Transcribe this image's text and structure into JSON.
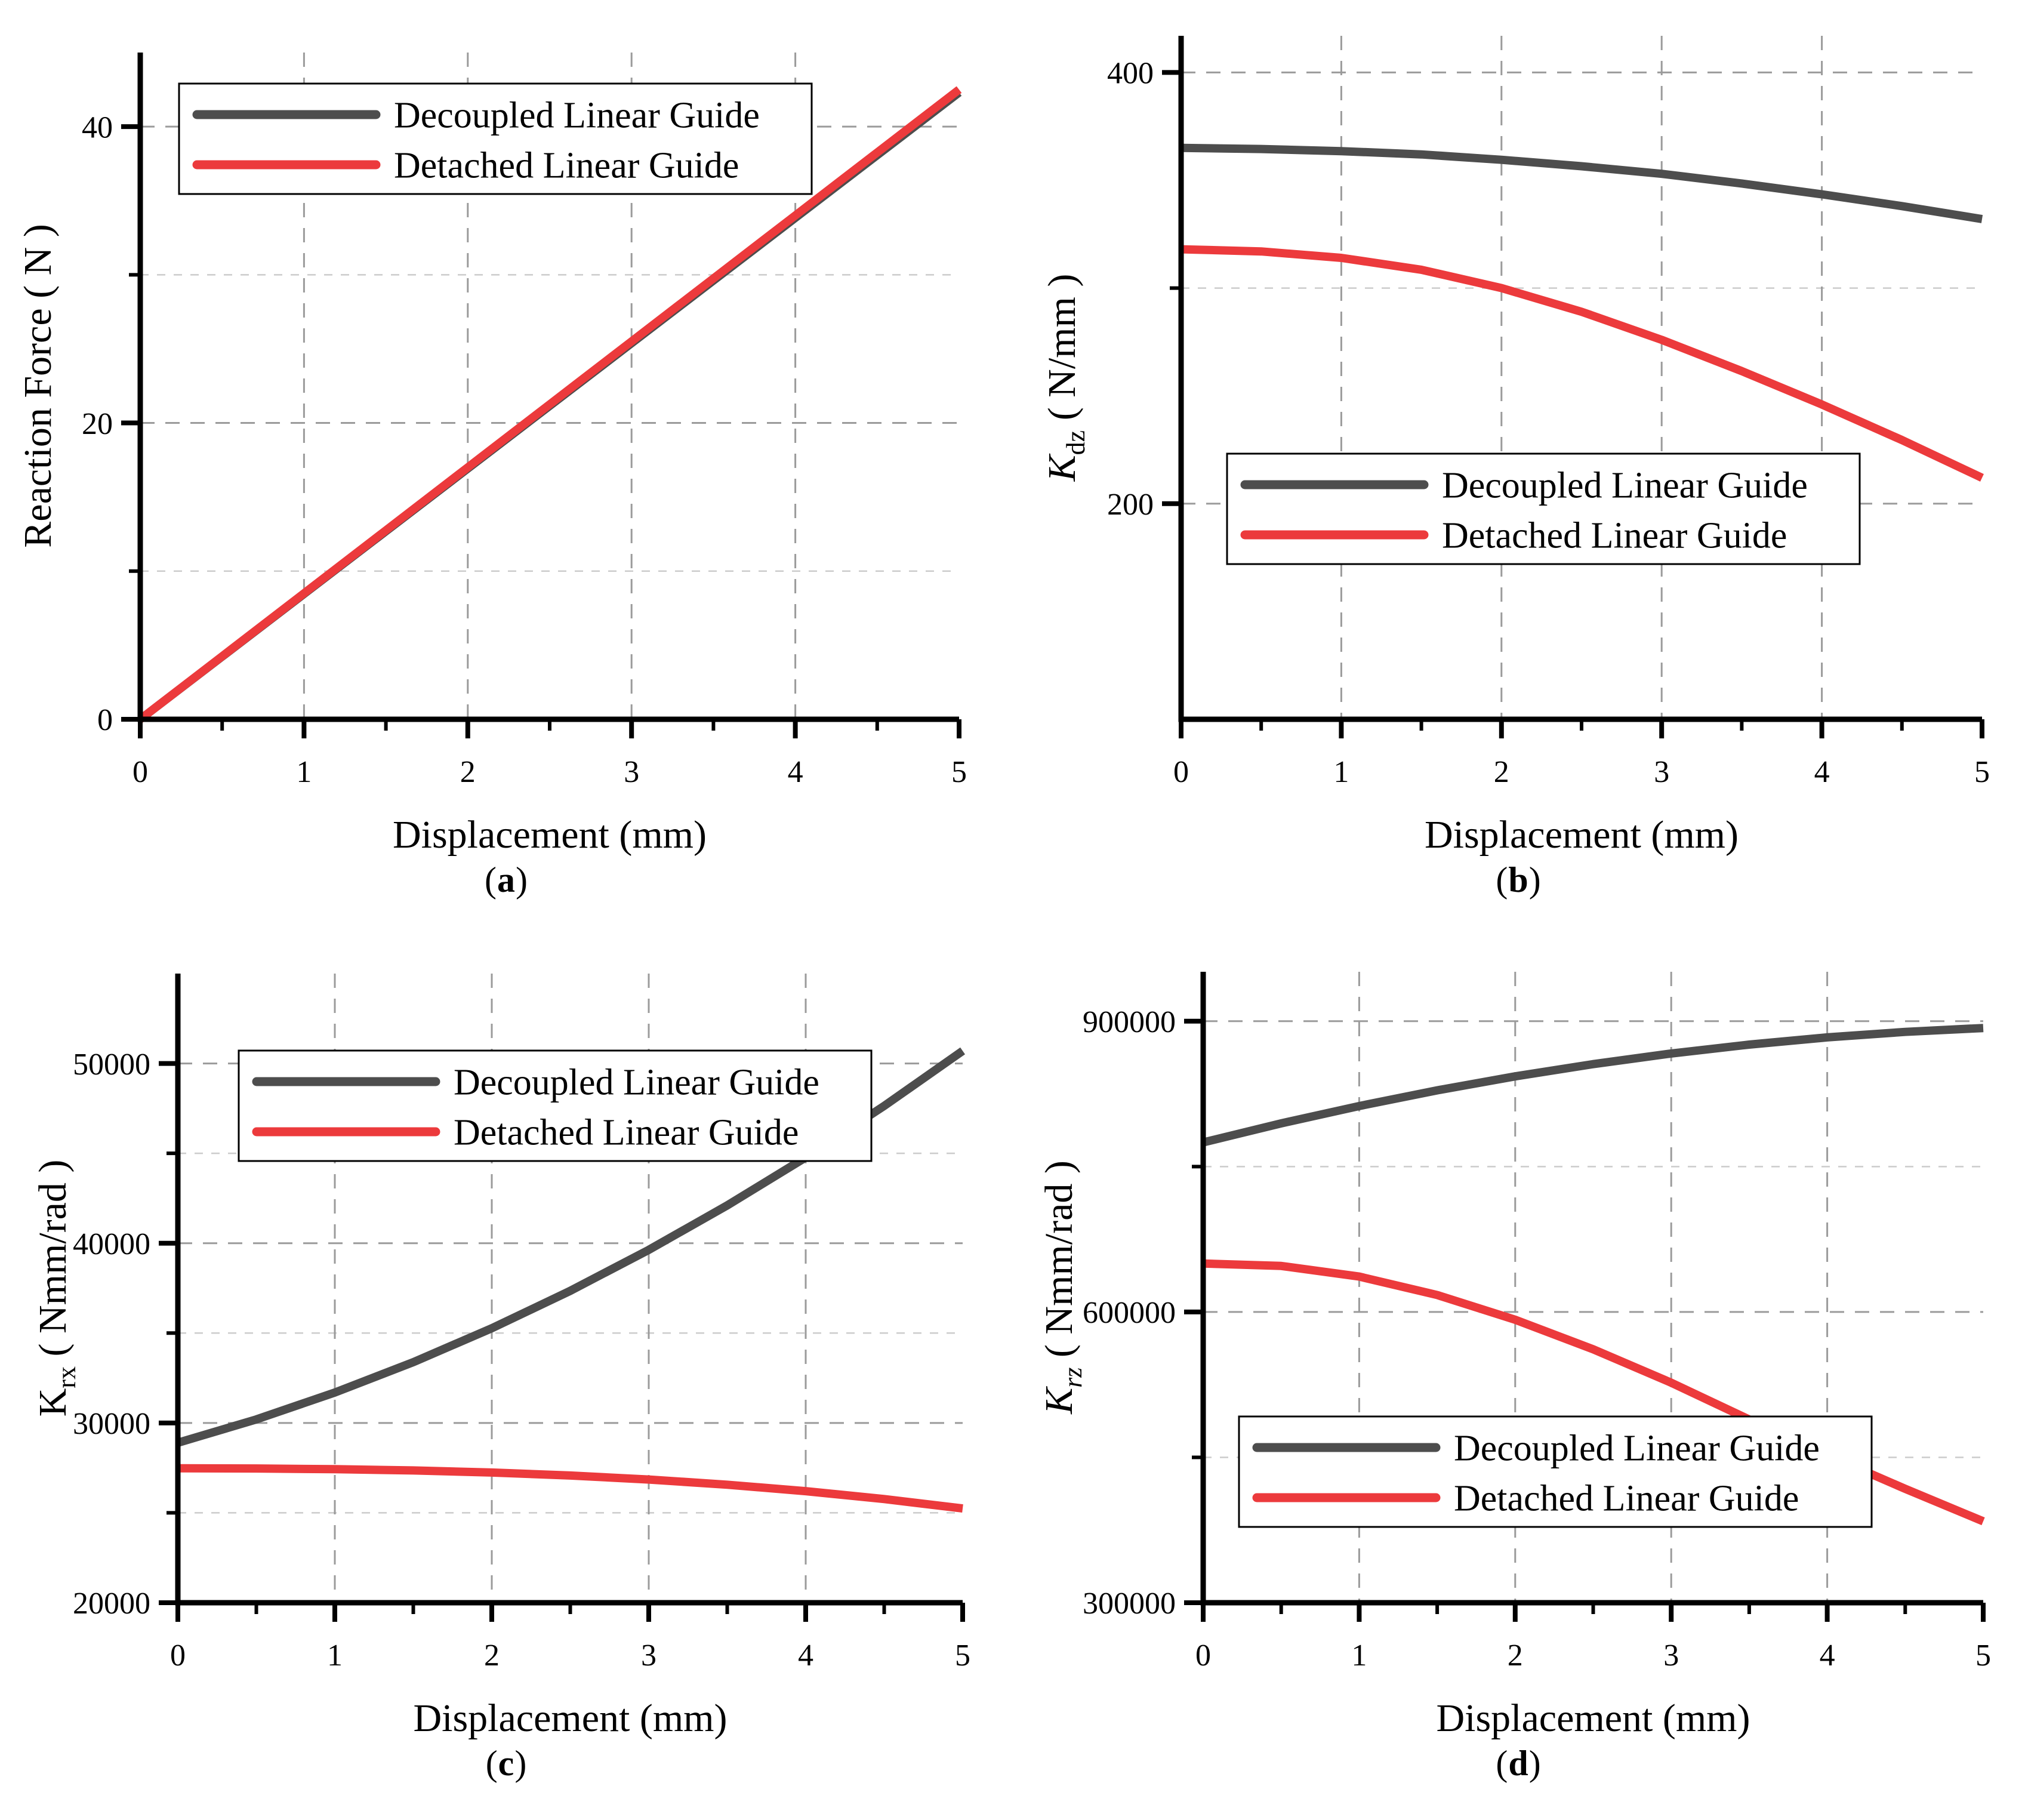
{
  "page": {
    "background": "#ffffff"
  },
  "colors": {
    "decoupled": "#4D4D4D",
    "detached": "#EC3A3C",
    "axis": "#000000",
    "grid_major": "#9B9B9B",
    "grid_minor": "#CCCCCC",
    "legend_bg": "#FFFFFF",
    "legend_border": "#000000",
    "text": "#000000"
  },
  "legend_labels": [
    "Decoupled Linear Guide",
    "Detached Linear Guide"
  ],
  "chart_data": [
    {
      "id": "a",
      "type": "line",
      "caption_open": "(",
      "caption_letter": "a",
      "caption_close": ")",
      "xlabel": "Displacement (mm)",
      "ylabel": {
        "pre": "Reaction Force ( N )",
        "italic_pre": false,
        "sub": "",
        "italic_sub": false,
        "post": ""
      },
      "xlim": [
        0,
        5
      ],
      "ylim": [
        0,
        45
      ],
      "xticks": [
        {
          "v": 0,
          "label": "0"
        },
        {
          "v": 1,
          "label": "1"
        },
        {
          "v": 2,
          "label": "2"
        },
        {
          "v": 3,
          "label": "3"
        },
        {
          "v": 4,
          "label": "4"
        },
        {
          "v": 5,
          "label": "5"
        }
      ],
      "x_minor": [
        0.5,
        1.5,
        2.5,
        3.5,
        4.5
      ],
      "yticks": [
        {
          "v": 0,
          "label": "0"
        },
        {
          "v": 20,
          "label": "20"
        },
        {
          "v": 40,
          "label": "40"
        }
      ],
      "y_minor": [
        10,
        30
      ],
      "grid_x": [
        1,
        2,
        3,
        4
      ],
      "grid_y_major": [
        20,
        40
      ],
      "grid_y_minor": [
        10,
        30
      ],
      "legend_position": "top-left",
      "x": [
        0,
        0.5,
        1,
        1.5,
        2,
        2.5,
        3,
        3.5,
        4,
        4.5,
        5
      ],
      "series": [
        {
          "name": "Decoupled Linear Guide",
          "color_key": "decoupled",
          "values": [
            0,
            4.23,
            8.46,
            12.69,
            16.92,
            21.15,
            25.38,
            29.61,
            33.84,
            38.07,
            42.3
          ]
        },
        {
          "name": "Detached Linear Guide",
          "color_key": "detached",
          "values": [
            0,
            4.25,
            8.5,
            12.75,
            17,
            21.25,
            25.5,
            29.75,
            34,
            38.25,
            42.5
          ]
        }
      ]
    },
    {
      "id": "b",
      "type": "line",
      "caption_open": "(",
      "caption_letter": "b",
      "caption_close": ")",
      "xlabel": "Displacement (mm)",
      "ylabel": {
        "pre": "K",
        "italic_pre": true,
        "sub": "dz",
        "italic_sub": false,
        "post": " ( N/mm )"
      },
      "xlim": [
        0,
        5
      ],
      "ylim": [
        100,
        417
      ],
      "xticks": [
        {
          "v": 0,
          "label": "0"
        },
        {
          "v": 1,
          "label": "1"
        },
        {
          "v": 2,
          "label": "2"
        },
        {
          "v": 3,
          "label": "3"
        },
        {
          "v": 4,
          "label": "4"
        },
        {
          "v": 5,
          "label": "5"
        }
      ],
      "x_minor": [
        0.5,
        1.5,
        2.5,
        3.5,
        4.5
      ],
      "yticks": [
        {
          "v": 200,
          "label": "200"
        },
        {
          "v": 400,
          "label": "400"
        }
      ],
      "y_minor": [
        300
      ],
      "grid_x": [
        1,
        2,
        3,
        4
      ],
      "grid_y_major": [
        200,
        400
      ],
      "grid_y_minor": [
        300
      ],
      "legend_position": "middle-left",
      "x": [
        0,
        0.5,
        1,
        1.5,
        2,
        2.5,
        3,
        3.5,
        4,
        4.5,
        5
      ],
      "series": [
        {
          "name": "Decoupled Linear Guide",
          "color_key": "decoupled",
          "values": [
            365,
            364.5,
            363.5,
            362,
            359.5,
            356.5,
            353,
            348.5,
            343.5,
            338,
            332
          ]
        },
        {
          "name": "Detached Linear Guide",
          "color_key": "detached",
          "values": [
            318,
            317,
            314,
            308.5,
            300,
            289,
            276,
            261.5,
            246,
            229.5,
            212
          ]
        }
      ]
    },
    {
      "id": "c",
      "type": "line",
      "caption_open": "(",
      "caption_letter": "c",
      "caption_close": ")",
      "xlabel": "Displacement (mm)",
      "ylabel": {
        "pre": "K",
        "italic_pre": false,
        "sub": "rx",
        "italic_sub": false,
        "post": " ( Nmm/rad )"
      },
      "xlim": [
        0,
        5
      ],
      "ylim": [
        20000,
        55000
      ],
      "xticks": [
        {
          "v": 0,
          "label": "0"
        },
        {
          "v": 1,
          "label": "1"
        },
        {
          "v": 2,
          "label": "2"
        },
        {
          "v": 3,
          "label": "3"
        },
        {
          "v": 4,
          "label": "4"
        },
        {
          "v": 5,
          "label": "5"
        }
      ],
      "x_minor": [
        0.5,
        1.5,
        2.5,
        3.5,
        4.5
      ],
      "yticks": [
        {
          "v": 20000,
          "label": "20000"
        },
        {
          "v": 30000,
          "label": "30000"
        },
        {
          "v": 40000,
          "label": "40000"
        },
        {
          "v": 50000,
          "label": "50000"
        }
      ],
      "y_minor": [
        25000,
        35000,
        45000
      ],
      "grid_x": [
        1,
        2,
        3,
        4
      ],
      "grid_y_major": [
        30000,
        40000,
        50000
      ],
      "grid_y_minor": [
        25000,
        35000,
        45000
      ],
      "legend_position": "top-left",
      "x": [
        0,
        0.5,
        1,
        1.5,
        2,
        2.5,
        3,
        3.5,
        4,
        4.5,
        5
      ],
      "series": [
        {
          "name": "Decoupled Linear Guide",
          "color_key": "decoupled",
          "values": [
            28900,
            30198,
            31692,
            33382,
            35268,
            37350,
            39628,
            42102,
            44772,
            47638,
            50700
          ]
        },
        {
          "name": "Detached Linear Guide",
          "color_key": "detached",
          "values": [
            27480,
            27469,
            27430,
            27357,
            27241,
            27075,
            26853,
            26565,
            26206,
            25767,
            25243
          ]
        }
      ]
    },
    {
      "id": "d",
      "type": "line",
      "caption_open": "(",
      "caption_letter": "d",
      "caption_close": ")",
      "xlabel": "Displacement (mm)",
      "ylabel": {
        "pre": "K",
        "italic_pre": true,
        "sub": "rz",
        "italic_sub": true,
        "post": "  ( Nmm/rad )"
      },
      "xlim": [
        0,
        5
      ],
      "ylim": [
        300000,
        951000
      ],
      "xticks": [
        {
          "v": 0,
          "label": "0"
        },
        {
          "v": 1,
          "label": "1"
        },
        {
          "v": 2,
          "label": "2"
        },
        {
          "v": 3,
          "label": "3"
        },
        {
          "v": 4,
          "label": "4"
        },
        {
          "v": 5,
          "label": "5"
        }
      ],
      "x_minor": [
        0.5,
        1.5,
        2.5,
        3.5,
        4.5
      ],
      "yticks": [
        {
          "v": 300000,
          "label": "300000"
        },
        {
          "v": 600000,
          "label": "600000"
        },
        {
          "v": 900000,
          "label": "900000"
        }
      ],
      "y_minor": [
        450000,
        750000
      ],
      "grid_x": [
        1,
        2,
        3,
        4
      ],
      "grid_y_major": [
        600000,
        900000
      ],
      "grid_y_minor": [
        450000,
        750000
      ],
      "legend_position": "bottom-left",
      "x": [
        0,
        0.5,
        1,
        1.5,
        2,
        2.5,
        3,
        3.5,
        4,
        4.5,
        5
      ],
      "series": [
        {
          "name": "Decoupled Linear Guide",
          "color_key": "decoupled",
          "values": [
            775000,
            794600,
            812500,
            828700,
            843100,
            855750,
            866700,
            875850,
            883300,
            889000,
            893000
          ]
        },
        {
          "name": "Detached Linear Guide",
          "color_key": "detached",
          "values": [
            650000,
            647500,
            636500,
            617500,
            592000,
            561500,
            527000,
            489000,
            452500,
            417500,
            384000
          ]
        }
      ]
    }
  ]
}
